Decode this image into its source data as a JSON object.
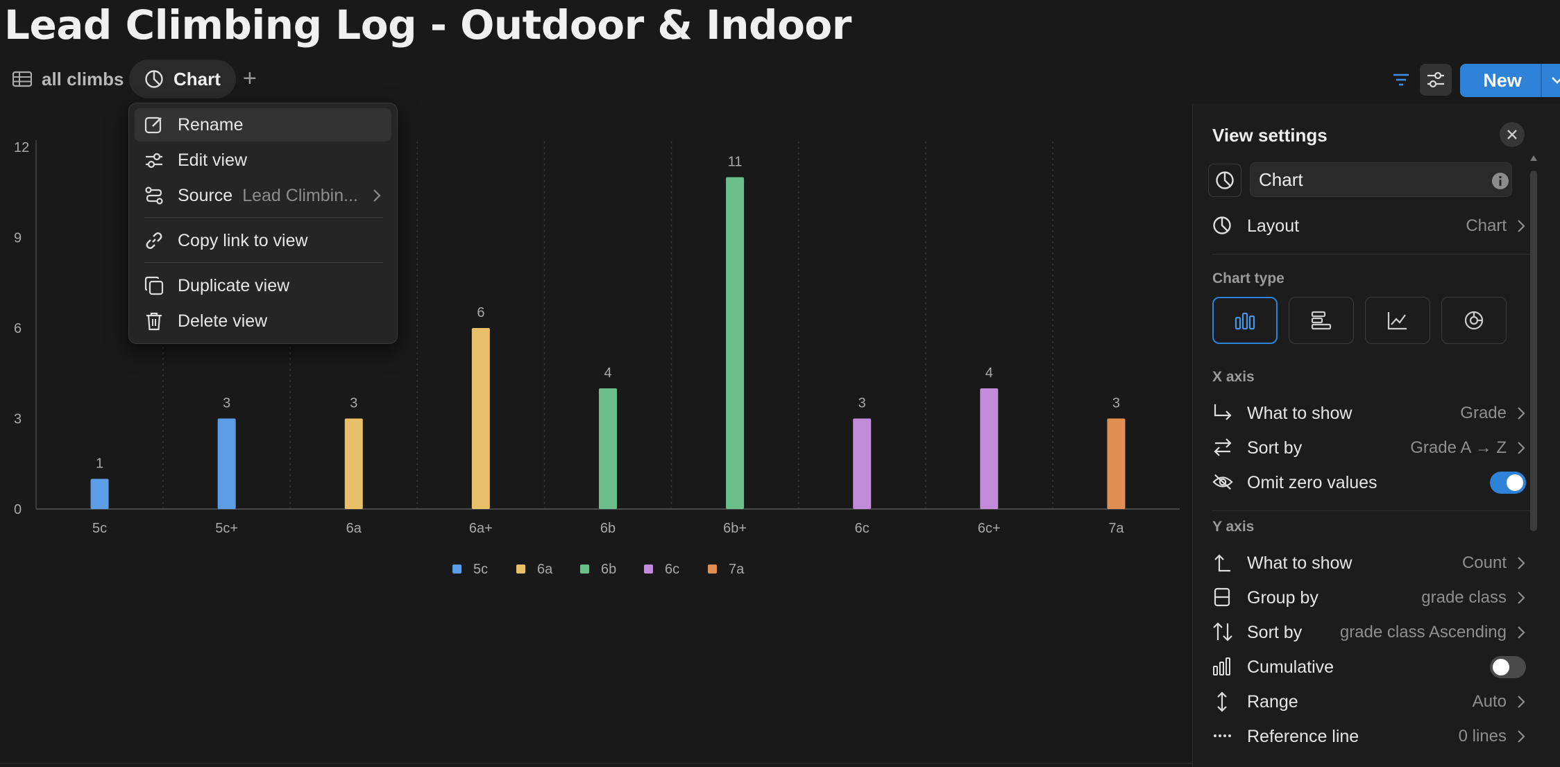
{
  "page": {
    "title": "Lead Climbing Log - Outdoor & Indoor"
  },
  "tabs": [
    {
      "label": "all climbs",
      "icon": "table-icon"
    },
    {
      "label": "Chart",
      "icon": "pie-chart-icon"
    }
  ],
  "toolbar": {
    "new_label": "New"
  },
  "colors": {
    "accent": "#2e83d9",
    "c5": "#5b9ee6",
    "c6a": "#e8c06a",
    "c6b": "#6bbf8a",
    "c6c": "#c38cdb",
    "c7a": "#e08f52"
  },
  "chart_data": {
    "type": "bar",
    "categories": [
      "5c",
      "5c+",
      "6a",
      "6a+",
      "6b",
      "6b+",
      "6c",
      "6c+",
      "7a"
    ],
    "values": [
      1,
      3,
      3,
      6,
      4,
      11,
      3,
      4,
      3
    ],
    "groups": [
      "5c",
      "5c",
      "6a",
      "6a",
      "6b",
      "6b",
      "6c",
      "6c",
      "7a"
    ],
    "ylim": [
      0,
      12
    ],
    "yticks": [
      0,
      3,
      6,
      9,
      12
    ],
    "grid": "vertical-dotted",
    "legend": {
      "placement": "bottom-center",
      "entries": [
        "5c",
        "6a",
        "6b",
        "6c",
        "7a"
      ]
    },
    "title": "",
    "xlabel": "",
    "ylabel": ""
  },
  "menu": {
    "items": [
      {
        "label": "Rename",
        "icon": "rename-icon"
      },
      {
        "label": "Edit view",
        "icon": "sliders-icon"
      },
      {
        "label": "Source",
        "sub": "Lead Climbin...",
        "icon": "source-icon"
      },
      {
        "label": "Copy link to view",
        "icon": "link-icon"
      },
      {
        "label": "Duplicate view",
        "icon": "duplicate-icon"
      },
      {
        "label": "Delete view",
        "icon": "trash-icon"
      }
    ]
  },
  "settings": {
    "title": "View settings",
    "view_name": "Chart",
    "layout": {
      "label": "Layout",
      "value": "Chart"
    },
    "chart_type_label": "Chart type",
    "chart_type_options": [
      "vertical-bar",
      "horizontal-bar",
      "line",
      "donut"
    ],
    "x_axis": {
      "label": "X axis",
      "what_to_show": {
        "label": "What to show",
        "value": "Grade"
      },
      "sort_by": {
        "label": "Sort by",
        "value": "Grade A → Z"
      },
      "omit_zero": {
        "label": "Omit zero values",
        "on": true
      }
    },
    "y_axis": {
      "label": "Y axis",
      "what_to_show": {
        "label": "What to show",
        "value": "Count"
      },
      "group_by": {
        "label": "Group by",
        "value": "grade class"
      },
      "sort_by": {
        "label": "Sort by",
        "value": "grade class Ascending"
      },
      "cumulative": {
        "label": "Cumulative",
        "on": false
      },
      "range": {
        "label": "Range",
        "value": "Auto"
      },
      "reference_line": {
        "label": "Reference line",
        "value": "0 lines"
      }
    }
  }
}
